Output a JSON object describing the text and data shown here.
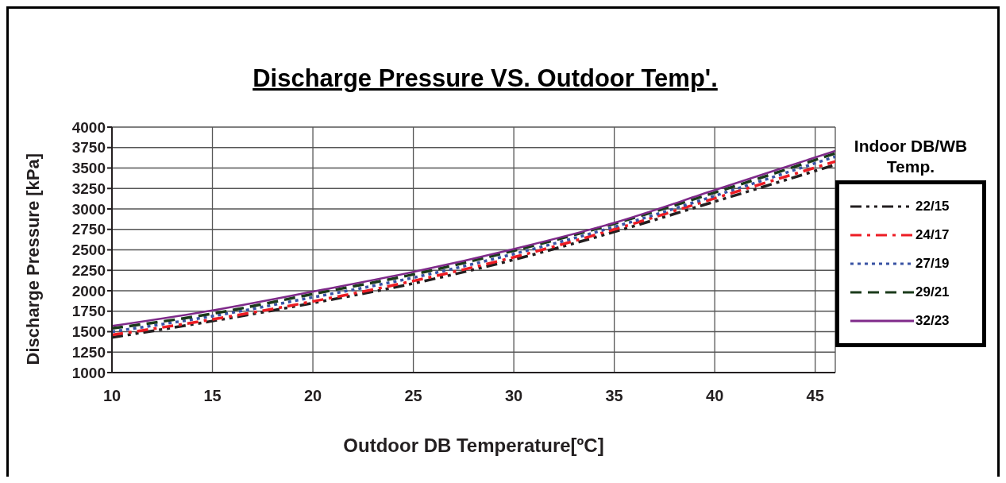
{
  "chart_data": {
    "type": "line",
    "title": "Discharge Pressure VS. Outdoor Temp'.",
    "xlabel": "Outdoor DB Temperature[ºC]",
    "ylabel": "Discharge Pressure [kPa]",
    "legend_title": "Indoor DB/WB Temp.",
    "x": [
      10,
      15,
      20,
      25,
      30,
      35,
      40,
      46
    ],
    "series": [
      {
        "name": "22/15",
        "color": "#231f20",
        "line_style": "dashdotdot",
        "values": [
          1430,
          1630,
          1850,
          2090,
          2380,
          2720,
          3090,
          3540
        ]
      },
      {
        "name": "24/17",
        "color": "#ed1c24",
        "line_style": "dashdot",
        "values": [
          1460,
          1650,
          1870,
          2120,
          2410,
          2750,
          3130,
          3580
        ]
      },
      {
        "name": "27/19",
        "color": "#3953a4",
        "line_style": "dotted",
        "values": [
          1500,
          1690,
          1920,
          2160,
          2450,
          2780,
          3160,
          3640
        ]
      },
      {
        "name": "29/21",
        "color": "#1a3a1a",
        "line_style": "dashed",
        "values": [
          1540,
          1720,
          1960,
          2200,
          2490,
          2820,
          3200,
          3680
        ]
      },
      {
        "name": "32/23",
        "color": "#7f2a8a",
        "line_style": "solid",
        "values": [
          1570,
          1760,
          1990,
          2230,
          2510,
          2830,
          3230,
          3710
        ]
      }
    ],
    "xlim": [
      10,
      46
    ],
    "xticks": [
      10,
      15,
      20,
      25,
      30,
      35,
      40,
      45
    ],
    "ylim": [
      1000,
      4000
    ],
    "yticks": [
      1000,
      1250,
      1500,
      1750,
      2000,
      2250,
      2500,
      2750,
      3000,
      3250,
      3500,
      3750,
      4000
    ],
    "grid": true,
    "legend": "right",
    "marker": "none"
  }
}
